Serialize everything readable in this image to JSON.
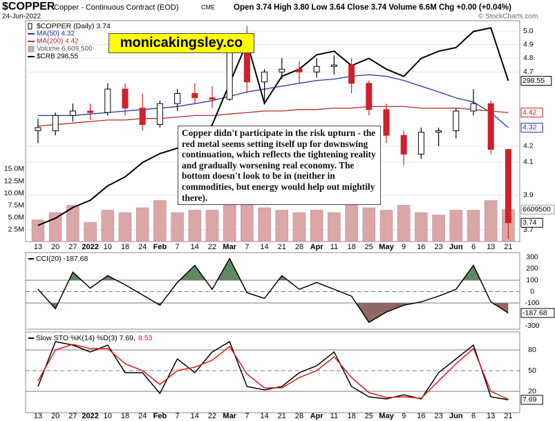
{
  "header": {
    "symbol": "$COPPER",
    "description": "Copper - Continuous Contract (EOD)",
    "exchange": "CME",
    "date": "24-Jun-2022",
    "stats": "Open 3.74 High 3.80 Low 3.64 Close 3.74 Volume 6.6M Chg +0.00 (+0.04%)",
    "credit": "© StockCharts.com"
  },
  "annotations": {
    "watermark": "monicakingsley.co",
    "comment": "Copper didn't participate in the risk upturn - the red metal seems setting itself up for downswing continuation, which reflects the tightening reality and gradually worsening real economy. The bottom doesn't look to be in (neither in commodities, but energy would help out mightily there)."
  },
  "chart_data": [
    {
      "type": "candlestick",
      "legend": "$COPPER (Daily) 3.74",
      "categories": [
        "13",
        "20",
        "27",
        "2022",
        "10",
        "18",
        "24",
        "Feb",
        "7",
        "14",
        "22",
        "Mar",
        "7",
        "14",
        "21",
        "28",
        "Apr",
        "11",
        "18",
        "25",
        "May",
        "9",
        "16",
        "23",
        "Jun",
        "6",
        "13",
        "21"
      ],
      "open": [
        4.3,
        4.3,
        4.4,
        4.43,
        4.42,
        4.58,
        4.45,
        4.34,
        4.48,
        4.55,
        4.52,
        4.51,
        4.85,
        4.63,
        4.7,
        4.72,
        4.7,
        4.74,
        4.75,
        4.62,
        4.44,
        4.27,
        4.15,
        4.29,
        4.3,
        4.43,
        4.48,
        4.18
      ],
      "high": [
        4.38,
        4.42,
        4.48,
        4.48,
        4.62,
        4.62,
        4.55,
        4.5,
        4.58,
        4.62,
        4.6,
        4.9,
        5.04,
        4.72,
        4.8,
        4.78,
        4.8,
        4.82,
        4.8,
        4.64,
        4.48,
        4.3,
        4.32,
        4.32,
        4.45,
        4.58,
        4.5,
        4.18
      ],
      "low": [
        4.22,
        4.27,
        4.36,
        4.37,
        4.4,
        4.4,
        4.3,
        4.32,
        4.43,
        4.48,
        4.45,
        4.5,
        4.55,
        4.5,
        4.65,
        4.62,
        4.66,
        4.68,
        4.55,
        4.4,
        4.22,
        4.08,
        4.12,
        4.2,
        4.25,
        4.4,
        4.15,
        3.65
      ],
      "close": [
        4.32,
        4.4,
        4.43,
        4.42,
        4.58,
        4.45,
        4.34,
        4.48,
        4.55,
        4.52,
        4.51,
        4.85,
        4.63,
        4.7,
        4.72,
        4.7,
        4.74,
        4.75,
        4.62,
        4.44,
        4.27,
        4.15,
        4.29,
        4.3,
        4.43,
        4.48,
        4.18,
        3.74
      ],
      "up_color": "#000000",
      "down_color": "#d0202a",
      "log_scale": true,
      "grid": true,
      "ylim": [
        3.635,
        5.08
      ],
      "yticks": [
        3.7,
        3.9,
        4.1,
        4.2,
        4.7,
        4.8,
        4.9,
        {
          "value": 5,
          "label": "5.0"
        }
      ],
      "y2lim": [
        209,
        332
      ],
      "series": [
        {
          "name": "MA(50) 4.32",
          "color": "#2233aa",
          "values": [
            4.4,
            4.4,
            4.4,
            4.41,
            4.42,
            4.43,
            4.44,
            4.45,
            4.46,
            4.48,
            4.5,
            4.53,
            4.56,
            4.58,
            4.6,
            4.62,
            4.64,
            4.65,
            4.67,
            4.68,
            4.67,
            4.64,
            4.6,
            4.56,
            4.52,
            4.49,
            4.42,
            4.32
          ]
        },
        {
          "name": "MA(200) 4.42",
          "color": "#c0262b",
          "values": [
            4.33,
            4.34,
            4.35,
            4.36,
            4.37,
            4.37,
            4.38,
            4.38,
            4.39,
            4.4,
            4.4,
            4.41,
            4.42,
            4.43,
            4.43,
            4.44,
            4.44,
            4.45,
            4.45,
            4.46,
            4.46,
            4.46,
            4.45,
            4.45,
            4.45,
            4.44,
            4.43,
            4.42
          ]
        },
        {
          "name": "$CRB 298.55",
          "color": "#000000",
          "axis": "y2",
          "values": [
            218,
            222,
            228,
            232,
            240,
            245,
            253,
            258,
            261,
            266,
            274,
            297,
            320,
            286,
            301,
            305,
            313,
            315,
            307,
            311,
            305,
            301,
            311,
            315,
            317,
            326,
            328,
            298.55
          ]
        }
      ],
      "volume": {
        "name": "Volume 6,609,500",
        "color": "#dba6a6",
        "values": [
          4500000,
          6000000,
          7500000,
          4000000,
          6500000,
          6000000,
          7000000,
          8500000,
          6000000,
          6500000,
          6500000,
          9000000,
          8000000,
          7000000,
          6500000,
          6000000,
          6500000,
          6000000,
          7500000,
          7000000,
          6500000,
          7500000,
          6000000,
          5500000,
          6500000,
          6500000,
          8500000,
          6609500
        ],
        "ylim": [
          0,
          45700000
        ],
        "yticks": [
          {
            "value": 2500000,
            "label": "2.5M"
          },
          {
            "value": 5000000,
            "label": "5.0M"
          },
          {
            "value": 7500000,
            "label": "7.5M"
          },
          {
            "value": 10000000,
            "label": "10.0M"
          },
          {
            "value": 12500000,
            "label": "12.5M"
          },
          {
            "value": 15000000,
            "label": "15.0M"
          }
        ]
      }
    },
    {
      "type": "line",
      "series": [
        {
          "name": "CCI(20) -187.68",
          "color": "#000000",
          "values": [
            20,
            -150,
            170,
            30,
            140,
            60,
            -30,
            -120,
            80,
            230,
            20,
            290,
            -10,
            -60,
            140,
            20,
            80,
            20,
            -40,
            -270,
            -180,
            -120,
            -90,
            -40,
            20,
            230,
            -90,
            -187.68
          ]
        }
      ],
      "ylim": [
        -330,
        342
      ],
      "yticks": [
        300,
        200,
        100,
        0,
        -100,
        -200,
        -300
      ],
      "lines": [
        {
          "value": 100,
          "style": "solid"
        },
        {
          "value": 0,
          "style": "dashed"
        },
        {
          "value": -100,
          "style": "solid"
        }
      ],
      "fills": [
        {
          "above": 100,
          "color": "#5f8a5f"
        },
        {
          "below": -100,
          "color": "#8e6863"
        }
      ]
    },
    {
      "type": "line",
      "series": [
        {
          "name": "Slow STO %K(14) %D(3) 7.69,",
          "color": "#000000",
          "values": [
            27,
            92,
            87,
            77,
            87,
            47,
            47,
            17,
            67,
            47,
            77,
            92,
            27,
            22,
            27,
            47,
            57,
            77,
            27,
            12,
            9,
            15,
            9,
            47,
            67,
            87,
            12,
            7.69
          ]
        },
        {
          "name": "8.53",
          "color": "#e01818",
          "values": [
            35,
            80,
            88,
            82,
            82,
            60,
            50,
            30,
            50,
            55,
            65,
            85,
            45,
            25,
            25,
            40,
            50,
            70,
            40,
            18,
            11,
            12,
            10,
            35,
            60,
            82,
            20,
            8.53
          ]
        }
      ],
      "ylim": [
        -11,
        106
      ],
      "yticks": [
        80,
        50,
        20
      ],
      "lines": [
        {
          "value": 80,
          "style": "solid"
        },
        {
          "value": 50,
          "style": "dashed"
        },
        {
          "value": 20,
          "style": "solid"
        }
      ]
    }
  ]
}
